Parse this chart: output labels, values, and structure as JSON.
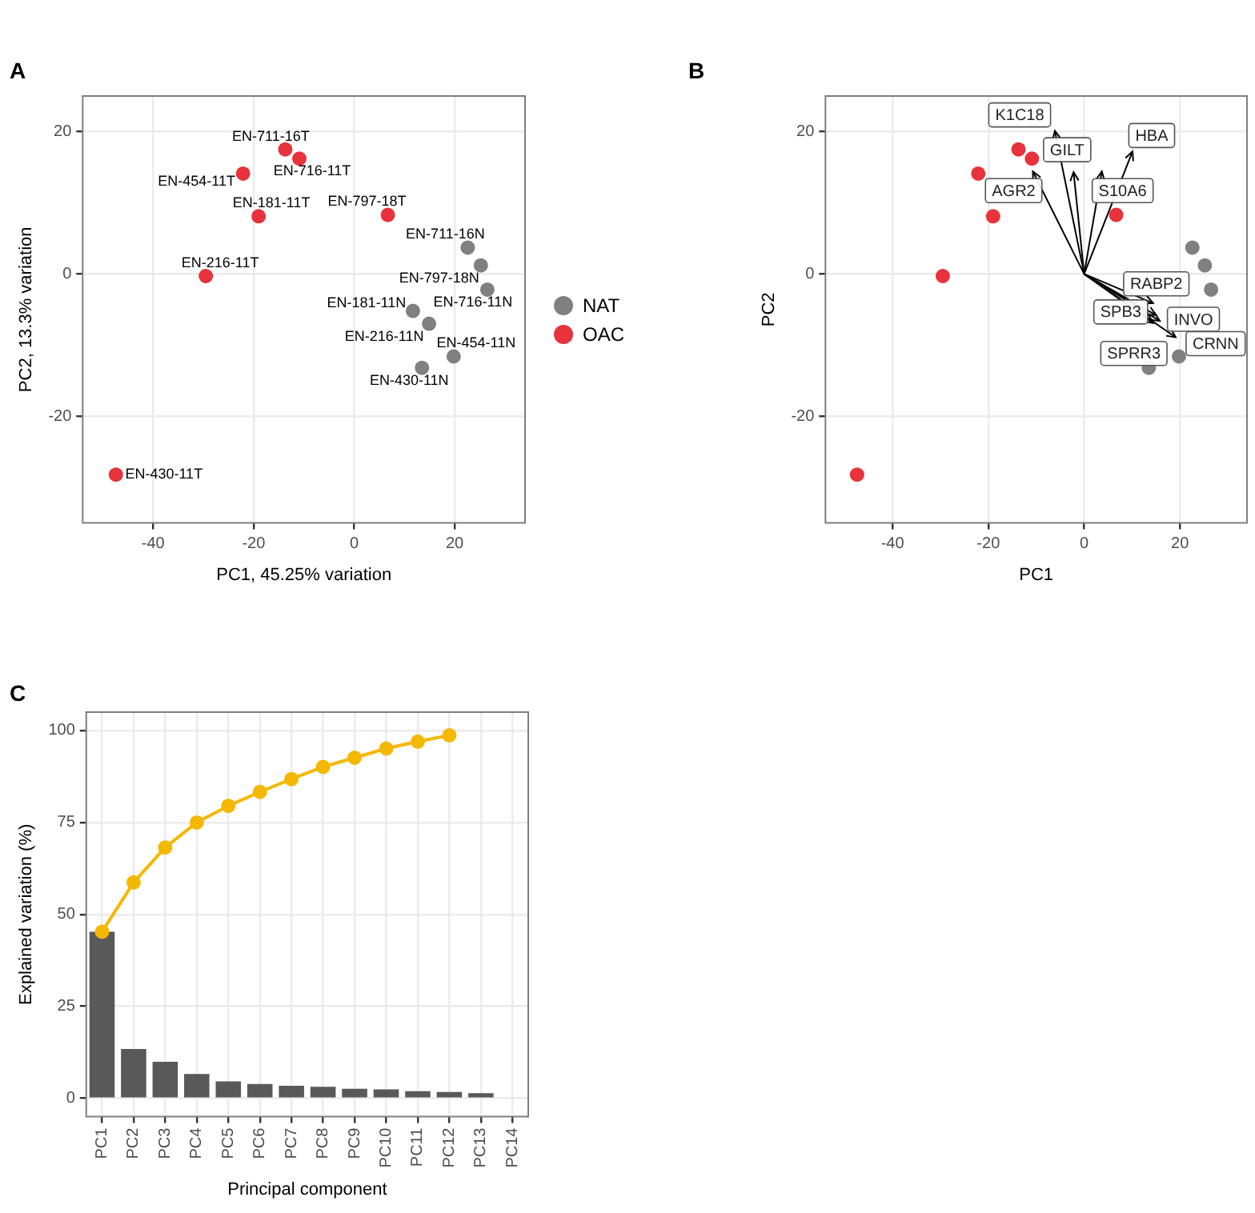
{
  "chart_data": [
    {
      "type": "scatter",
      "title": "A",
      "xlabel": "PC1, 45.25% variation",
      "ylabel": "PC2, 13.3% variation",
      "xlim": [
        -54,
        34
      ],
      "ylim": [
        -35,
        25
      ],
      "xticks": [
        -40,
        -20,
        0,
        20
      ],
      "yticks": [
        -20,
        0,
        20
      ],
      "grid": true,
      "legend": "right",
      "marker": "circle",
      "series": [
        {
          "name": "NAT",
          "color": "#808080",
          "x": [
            22.6,
            25.2,
            26.5,
            11.7,
            14.9,
            19.8,
            13.5
          ],
          "values": [
            3.7,
            1.2,
            -2.2,
            -5.2,
            -7.0,
            -11.6,
            -13.2
          ],
          "value_labels": [
            "EN-711-16N",
            "EN-797-18N",
            "EN-716-11N",
            "EN-181-11N",
            "EN-216-11N",
            "EN-454-11N",
            "EN-430-11N"
          ]
        },
        {
          "name": "OAC",
          "color": "#e8323c",
          "x": [
            -13.7,
            -10.9,
            -22.1,
            -19.0,
            6.7,
            -29.5,
            -47.4
          ],
          "values": [
            17.5,
            16.2,
            14.1,
            8.1,
            8.3,
            -0.3,
            -28.2
          ],
          "value_labels": [
            "EN-711-16T",
            "EN-716-11T",
            "EN-454-11T",
            "EN-181-11T",
            "EN-797-18T",
            "EN-216-11T",
            "EN-430-11T"
          ]
        }
      ]
    },
    {
      "type": "scatter",
      "title": "B",
      "xlabel": "PC1",
      "ylabel": "PC2",
      "xlim": [
        -54,
        34
      ],
      "ylim": [
        -35,
        25
      ],
      "xticks": [
        -40,
        -20,
        0,
        20
      ],
      "yticks": [
        -20,
        0,
        20
      ],
      "grid": true,
      "series": [
        {
          "marker": "circle",
          "color": "#808080",
          "x": [
            22.6,
            25.2,
            26.5,
            19.8,
            13.5
          ],
          "values": [
            3.7,
            1.2,
            -2.2,
            -11.6,
            -13.2
          ]
        },
        {
          "marker": "circle",
          "color": "#e8323c",
          "x": [
            -13.7,
            -10.9,
            -22.1,
            -19.0,
            6.7,
            -29.5,
            -47.4
          ],
          "values": [
            17.5,
            16.2,
            14.1,
            8.1,
            8.3,
            -0.3,
            -28.2
          ]
        },
        {
          "type": "line",
          "marker": "none",
          "color": "#000000",
          "x": [
            0,
            -6.1
          ],
          "values": [
            0,
            20.1
          ],
          "value_labels": [
            null,
            "K1C18"
          ]
        },
        {
          "type": "line",
          "marker": "none",
          "color": "#000000",
          "x": [
            0,
            -2.2
          ],
          "values": [
            0,
            14.3
          ],
          "value_labels": [
            null,
            "GILT"
          ]
        },
        {
          "type": "line",
          "marker": "none",
          "color": "#000000",
          "x": [
            0,
            -10.7
          ],
          "values": [
            0,
            14.4
          ],
          "value_labels": [
            null,
            "AGR2"
          ]
        },
        {
          "type": "line",
          "marker": "none",
          "color": "#000000",
          "x": [
            0,
            3.7
          ],
          "values": [
            0,
            14.4
          ],
          "value_labels": [
            null,
            "S10A6"
          ]
        },
        {
          "type": "line",
          "marker": "none",
          "color": "#000000",
          "x": [
            0,
            10.1
          ],
          "values": [
            0,
            17.2
          ],
          "value_labels": [
            null,
            "HBA"
          ]
        },
        {
          "type": "line",
          "marker": "none",
          "color": "#000000",
          "x": [
            0,
            14.4
          ],
          "values": [
            0,
            -4.1
          ],
          "value_labels": [
            null,
            "RABP2"
          ]
        },
        {
          "type": "line",
          "color": "#000000",
          "x": [
            0,
            15.0
          ],
          "values": [
            0,
            -5.8
          ],
          "value_labels": [
            null,
            "SPB3"
          ]
        },
        {
          "type": "line",
          "marker": "none",
          "color": "#000000",
          "x": [
            0,
            15.8
          ],
          "values": [
            0,
            -6.6
          ],
          "value_labels": [
            null,
            "INVO"
          ]
        },
        {
          "type": "line",
          "marker": "none",
          "color": "#000000",
          "x": [
            0,
            14.4
          ],
          "values": [
            0,
            -6.9
          ],
          "value_labels": [
            null,
            "SPRR3"
          ]
        },
        {
          "type": "line",
          "marker": "none",
          "color": "#000000",
          "x": [
            0,
            19.1
          ],
          "values": [
            0,
            -8.9
          ],
          "value_labels": [
            null,
            "CRNN"
          ]
        }
      ]
    },
    {
      "type": "bar",
      "title": "C",
      "xlabel": "Principal component",
      "ylabel": "Explained variation (%)",
      "categories": [
        "PC1",
        "PC2",
        "PC3",
        "PC4",
        "PC5",
        "PC6",
        "PC7",
        "PC8",
        "PC9",
        "PC10",
        "PC11",
        "PC12",
        "PC13",
        "PC14"
      ],
      "ylim": [
        -5,
        105
      ],
      "yticks": [
        0,
        25,
        50,
        75,
        100
      ],
      "grid": true,
      "marker": "circle",
      "series": [
        {
          "color": "#595959",
          "values": [
            45.3,
            13.4,
            9.9,
            6.6,
            4.6,
            3.9,
            3.4,
            3.1,
            2.6,
            2.4,
            1.9,
            1.7,
            1.4,
            0
          ]
        },
        {
          "type": "line",
          "color": "#f5b800",
          "values": [
            45.3,
            58.7,
            68.2,
            75.0,
            79.5,
            83.3,
            86.8,
            90.1,
            92.6,
            95.1,
            97.0,
            98.7,
            null,
            null
          ]
        }
      ]
    }
  ]
}
